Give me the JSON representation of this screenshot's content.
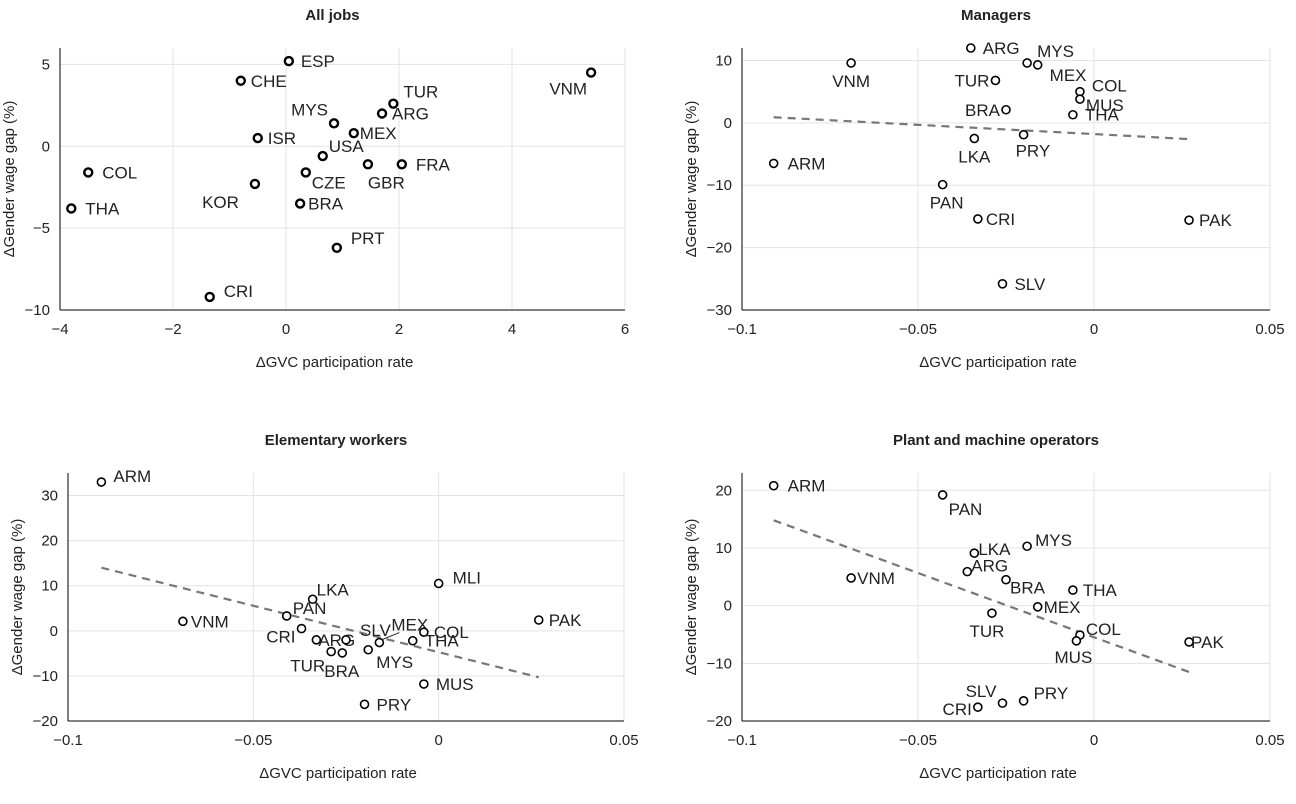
{
  "chart_data": [
    {
      "type": "scatter",
      "title": "All jobs",
      "xlabel": "ΔGVC participation rate",
      "ylabel": "ΔGender wage gap (%)",
      "xlim": [
        -4,
        6
      ],
      "ylim": [
        -10,
        6
      ],
      "xticks": [
        -4,
        -2,
        0,
        2,
        4,
        6
      ],
      "xtick_labels": [
        "−4",
        "−2",
        "0",
        "2",
        "4",
        "6"
      ],
      "yticks": [
        -10,
        -5,
        0,
        5
      ],
      "ytick_labels": [
        "−10",
        "−5",
        "0",
        "5"
      ],
      "grid": true,
      "marker_stroke": 2.4,
      "trendline": null,
      "points": [
        {
          "label": "ESP",
          "x": 0.05,
          "y": 5.2
        },
        {
          "label": "CHE",
          "x": -0.8,
          "y": 4.0
        },
        {
          "label": "VNM",
          "x": 5.4,
          "y": 4.5
        },
        {
          "label": "TUR",
          "x": 1.9,
          "y": 2.6
        },
        {
          "label": "ARG",
          "x": 1.7,
          "y": 2.0
        },
        {
          "label": "MYS",
          "x": 0.85,
          "y": 1.4
        },
        {
          "label": "MEX",
          "x": 1.2,
          "y": 0.8
        },
        {
          "label": "ISR",
          "x": -0.5,
          "y": 0.5
        },
        {
          "label": "USA",
          "x": 0.65,
          "y": -0.6
        },
        {
          "label": "FRA",
          "x": 2.05,
          "y": -1.1
        },
        {
          "label": "GBR",
          "x": 1.45,
          "y": -1.1
        },
        {
          "label": "COL",
          "x": -3.5,
          "y": -1.6
        },
        {
          "label": "CZE",
          "x": 0.35,
          "y": -1.6
        },
        {
          "label": "KOR",
          "x": -0.55,
          "y": -2.3
        },
        {
          "label": "BRA",
          "x": 0.25,
          "y": -3.5
        },
        {
          "label": "THA",
          "x": -3.8,
          "y": -3.8
        },
        {
          "label": "PRT",
          "x": 0.9,
          "y": -6.2
        },
        {
          "label": "CRI",
          "x": -1.35,
          "y": -9.2
        }
      ]
    },
    {
      "type": "scatter",
      "title": "Managers",
      "xlabel": "ΔGVC participation rate",
      "ylabel": "ΔGender wage gap (%)",
      "xlim": [
        -0.1,
        0.05
      ],
      "ylim": [
        -30,
        12
      ],
      "xticks": [
        -0.1,
        -0.05,
        0,
        0.05
      ],
      "xtick_labels": [
        "−0.1",
        "−0.05",
        "0",
        "0.05"
      ],
      "yticks": [
        -30,
        -20,
        -10,
        0,
        10
      ],
      "ytick_labels": [
        "−30",
        "−20",
        "−10",
        "0",
        "10"
      ],
      "grid": true,
      "marker_stroke": 1.6,
      "trendline": {
        "x": [
          -0.091,
          0.027
        ],
        "y": [
          0.9,
          -2.6
        ]
      },
      "points": [
        {
          "label": "ARG",
          "x": -0.035,
          "y": 12.0
        },
        {
          "label": "MYS",
          "x": -0.019,
          "y": 9.6
        },
        {
          "label": "VNM",
          "x": -0.069,
          "y": 9.6
        },
        {
          "label": "MEX",
          "x": -0.016,
          "y": 9.3
        },
        {
          "label": "TUR",
          "x": -0.028,
          "y": 6.8
        },
        {
          "label": "COL",
          "x": -0.004,
          "y": 5.0
        },
        {
          "label": "MUS",
          "x": -0.004,
          "y": 3.8
        },
        {
          "label": "BRA",
          "x": -0.025,
          "y": 2.1
        },
        {
          "label": "THA",
          "x": -0.006,
          "y": 1.3
        },
        {
          "label": "LKA",
          "x": -0.034,
          "y": -2.5
        },
        {
          "label": "PRY",
          "x": -0.02,
          "y": -1.9
        },
        {
          "label": "ARM",
          "x": -0.091,
          "y": -6.5
        },
        {
          "label": "PAN",
          "x": -0.043,
          "y": -9.9
        },
        {
          "label": "CRI",
          "x": -0.033,
          "y": -15.4
        },
        {
          "label": "PAK",
          "x": 0.027,
          "y": -15.6
        },
        {
          "label": "SLV",
          "x": -0.026,
          "y": -25.8
        }
      ]
    },
    {
      "type": "scatter",
      "title": "Elementary workers",
      "xlabel": "ΔGVC participation rate",
      "ylabel": "ΔGender wage gap (%)",
      "xlim": [
        -0.1,
        0.05
      ],
      "ylim": [
        -20,
        35
      ],
      "xticks": [
        -0.1,
        -0.05,
        0,
        0.05
      ],
      "xtick_labels": [
        "−0.1",
        "−0.05",
        "0",
        "0.05"
      ],
      "yticks": [
        -20,
        -10,
        0,
        10,
        20,
        30
      ],
      "ytick_labels": [
        "−20",
        "−10",
        "0",
        "10",
        "20",
        "30"
      ],
      "grid": true,
      "marker_stroke": 1.6,
      "trendline": {
        "x": [
          -0.091,
          0.027
        ],
        "y": [
          14.0,
          -10.3
        ]
      },
      "points": [
        {
          "label": "ARM",
          "x": -0.091,
          "y": 33.0
        },
        {
          "label": "MLI",
          "x": 0.0,
          "y": 10.5
        },
        {
          "label": "LKA",
          "x": -0.034,
          "y": 7.0
        },
        {
          "label": "PAN",
          "x": -0.041,
          "y": 3.3
        },
        {
          "label": "VNM",
          "x": -0.069,
          "y": 2.1
        },
        {
          "label": "PAK",
          "x": 0.027,
          "y": 2.4
        },
        {
          "label": "CRI",
          "x": -0.037,
          "y": 0.5
        },
        {
          "label": "ARG",
          "x": -0.033,
          "y": -2.0
        },
        {
          "label": "SLV",
          "x": -0.025,
          "y": -2.0
        },
        {
          "label": "MEX",
          "x": -0.016,
          "y": -2.6
        },
        {
          "label": "COL",
          "x": -0.004,
          "y": -0.3
        },
        {
          "label": "THA",
          "x": -0.007,
          "y": -2.2
        },
        {
          "label": "TUR",
          "x": -0.029,
          "y": -4.6
        },
        {
          "label": "BRA",
          "x": -0.026,
          "y": -4.9
        },
        {
          "label": "MYS",
          "x": -0.019,
          "y": -4.2
        },
        {
          "label": "MUS",
          "x": -0.004,
          "y": -11.8
        },
        {
          "label": "PRY",
          "x": -0.02,
          "y": -16.3
        }
      ]
    },
    {
      "type": "scatter",
      "title": "Plant and machine operators",
      "xlabel": "ΔGVC participation rate",
      "ylabel": "ΔGender wage gap (%)",
      "xlim": [
        -0.1,
        0.05
      ],
      "ylim": [
        -20,
        23
      ],
      "xticks": [
        -0.1,
        -0.05,
        0,
        0.05
      ],
      "xtick_labels": [
        "−0.1",
        "−0.05",
        "0",
        "0.05"
      ],
      "yticks": [
        -20,
        -10,
        0,
        10,
        20
      ],
      "ytick_labels": [
        "−20",
        "−10",
        "0",
        "10",
        "20"
      ],
      "grid": true,
      "marker_stroke": 1.6,
      "trendline": {
        "x": [
          -0.091,
          0.027
        ],
        "y": [
          14.8,
          -11.5
        ]
      },
      "points": [
        {
          "label": "ARM",
          "x": -0.091,
          "y": 20.8
        },
        {
          "label": "PAN",
          "x": -0.043,
          "y": 19.2
        },
        {
          "label": "MYS",
          "x": -0.019,
          "y": 10.3
        },
        {
          "label": "LKA",
          "x": -0.034,
          "y": 9.1
        },
        {
          "label": "ARG",
          "x": -0.036,
          "y": 5.9
        },
        {
          "label": "VNM",
          "x": -0.069,
          "y": 4.8
        },
        {
          "label": "BRA",
          "x": -0.025,
          "y": 4.5
        },
        {
          "label": "THA",
          "x": -0.006,
          "y": 2.7
        },
        {
          "label": "MEX",
          "x": -0.016,
          "y": -0.2
        },
        {
          "label": "TUR",
          "x": -0.029,
          "y": -1.3
        },
        {
          "label": "COL",
          "x": -0.004,
          "y": -5.1
        },
        {
          "label": "MUS",
          "x": -0.005,
          "y": -6.1
        },
        {
          "label": "PAK",
          "x": 0.027,
          "y": -6.3
        },
        {
          "label": "PRY",
          "x": -0.02,
          "y": -16.5
        },
        {
          "label": "SLV",
          "x": -0.026,
          "y": -16.9
        },
        {
          "label": "CRI",
          "x": -0.033,
          "y": -17.6
        }
      ]
    }
  ],
  "colors": {
    "marker": "#000000",
    "trendline": "#777777",
    "grid": "#e3e3e3",
    "axis": "#000000"
  }
}
